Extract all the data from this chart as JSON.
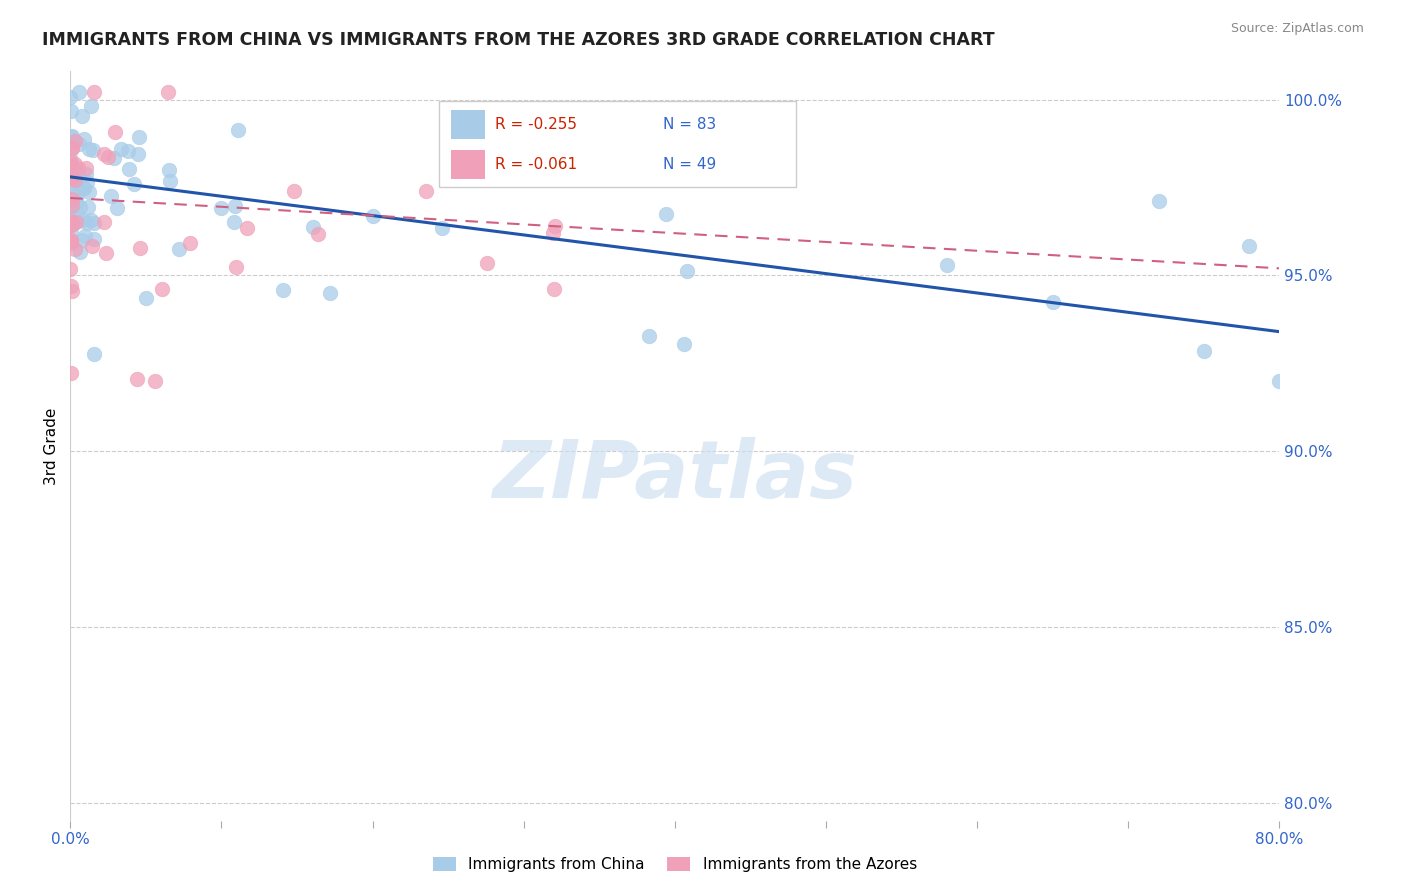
{
  "title": "IMMIGRANTS FROM CHINA VS IMMIGRANTS FROM THE AZORES 3RD GRADE CORRELATION CHART",
  "source": "Source: ZipAtlas.com",
  "ylabel": "3rd Grade",
  "xlim": [
    0.0,
    0.8
  ],
  "ylim": [
    0.795,
    1.008
  ],
  "yticks": [
    0.8,
    0.85,
    0.9,
    0.95,
    1.0
  ],
  "ytick_labels": [
    "80.0%",
    "85.0%",
    "90.0%",
    "95.0%",
    "100.0%"
  ],
  "xticks": [
    0.0,
    0.1,
    0.2,
    0.3,
    0.4,
    0.5,
    0.6,
    0.7,
    0.8
  ],
  "xtick_labels": [
    "0.0%",
    "",
    "",
    "",
    "",
    "",
    "",
    "",
    "80.0%"
  ],
  "china_color": "#a8cce8",
  "azores_color": "#f0a0b8",
  "china_line_color": "#2255aa",
  "azores_line_color": "#d06080",
  "legend_R_china": "R = -0.255",
  "legend_N_china": "N = 83",
  "legend_R_azores": "R = -0.061",
  "legend_N_azores": "N = 49",
  "watermark": "ZIPatlas",
  "legend_label_china": "Immigrants from China",
  "legend_label_azores": "Immigrants from the Azores",
  "china_line_x0": 0.0,
  "china_line_x1": 0.8,
  "china_line_y0": 0.978,
  "china_line_y1": 0.934,
  "azores_line_x0": 0.0,
  "azores_line_x1": 0.8,
  "azores_line_y0": 0.972,
  "azores_line_y1": 0.952
}
